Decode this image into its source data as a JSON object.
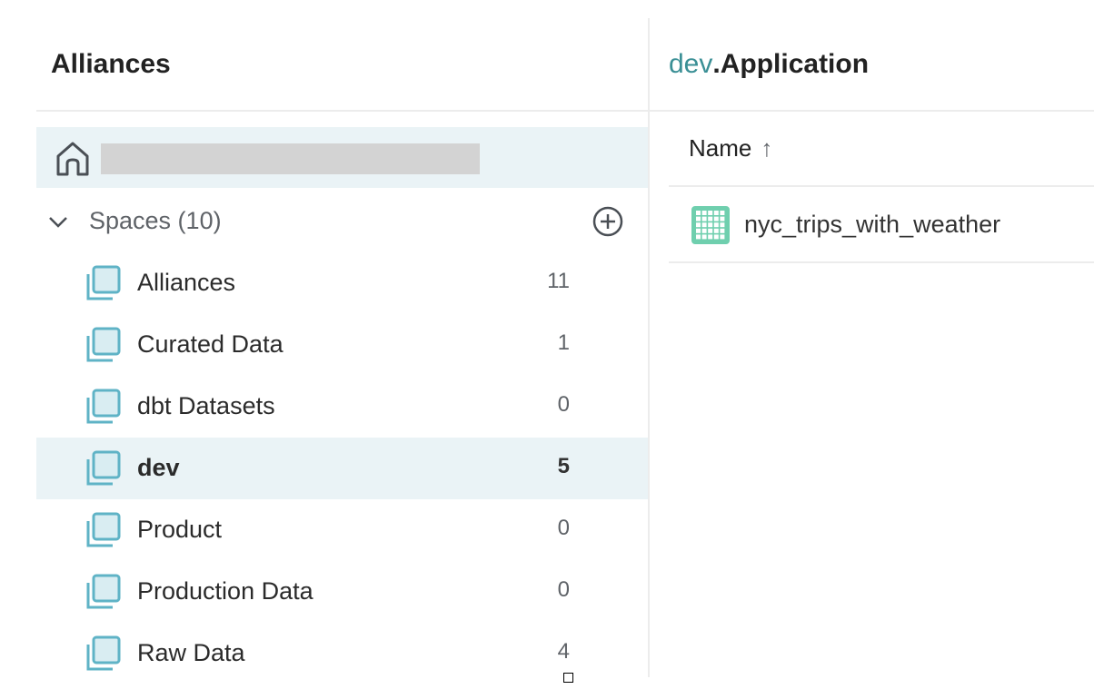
{
  "sidebar": {
    "title": "Alliances",
    "home_icon": "home-icon",
    "spaces_label": "Spaces (10)",
    "items": [
      {
        "label": "Alliances",
        "count": "11"
      },
      {
        "label": "Curated Data",
        "count": "1"
      },
      {
        "label": "dbt Datasets",
        "count": "0"
      },
      {
        "label": "dev",
        "count": "5",
        "selected": true
      },
      {
        "label": "Product",
        "count": "0"
      },
      {
        "label": "Production Data",
        "count": "0"
      },
      {
        "label": "Raw Data",
        "count": "4"
      }
    ]
  },
  "main": {
    "title_prefix": "dev",
    "title_suffix": ".Application",
    "column_header": "Name",
    "sort_arrow": "↑",
    "rows": [
      {
        "name": "nyc_trips_with_weather",
        "icon": "table-icon"
      }
    ]
  },
  "colors": {
    "accent": "#3a8f95",
    "selected_bg": "#eaf3f6",
    "table_icon": "#6fcfae",
    "space_icon": "#5fb3c6"
  }
}
